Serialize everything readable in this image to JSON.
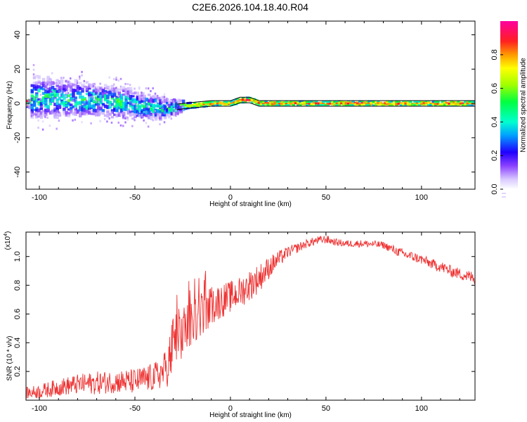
{
  "title": "C2E6.2026.104.18.40.R04",
  "chart_data": [
    {
      "type": "heatmap",
      "xlabel": "Height of straight line (km)",
      "ylabel": "Frequency (Hz)",
      "xlim": [
        -107,
        128
      ],
      "ylim": [
        -50,
        48
      ],
      "xticks": [
        -100,
        -50,
        0,
        50,
        100
      ],
      "yticks": [
        -40,
        -20,
        0,
        20,
        40
      ],
      "colorbar": {
        "label": "Normalized spectral amplitude",
        "range": [
          0.0,
          1.0
        ],
        "ticks": [
          0.0,
          0.2,
          0.4,
          0.6,
          0.8
        ],
        "tick_labels": [
          "0.0",
          "0.2",
          "0.4",
          "0.6",
          "0.8"
        ]
      },
      "ridge": [
        {
          "x": -105,
          "center": 3,
          "spread": 9,
          "amp": 0.45
        },
        {
          "x": -95,
          "center": 3,
          "spread": 8,
          "amp": 0.5
        },
        {
          "x": -85,
          "center": 2,
          "spread": 7,
          "amp": 0.5
        },
        {
          "x": -75,
          "center": 2,
          "spread": 7,
          "amp": 0.5
        },
        {
          "x": -65,
          "center": 1,
          "spread": 6,
          "amp": 0.5
        },
        {
          "x": -55,
          "center": 0,
          "spread": 6,
          "amp": 0.5
        },
        {
          "x": -45,
          "center": -2,
          "spread": 5,
          "amp": 0.48
        },
        {
          "x": -35,
          "center": -3,
          "spread": 4,
          "amp": 0.5
        },
        {
          "x": -28,
          "center": -2,
          "spread": 2,
          "amp": 0.6
        },
        {
          "x": -20,
          "center": -1,
          "spread": 1.5,
          "amp": 0.8
        },
        {
          "x": -10,
          "center": 0,
          "spread": 1.3,
          "amp": 0.9
        },
        {
          "x": 0,
          "center": 0,
          "spread": 1.2,
          "amp": 0.9
        },
        {
          "x": 5,
          "center": 2,
          "spread": 1.5,
          "amp": 0.95
        },
        {
          "x": 10,
          "center": 2,
          "spread": 1.5,
          "amp": 0.95
        },
        {
          "x": 15,
          "center": 0,
          "spread": 1.2,
          "amp": 0.95
        },
        {
          "x": 40,
          "center": 0,
          "spread": 1.2,
          "amp": 0.92
        },
        {
          "x": 70,
          "center": 0,
          "spread": 1.2,
          "amp": 0.95
        },
        {
          "x": 100,
          "center": 0,
          "spread": 1.2,
          "amp": 0.92
        },
        {
          "x": 128,
          "center": 0,
          "spread": 1.2,
          "amp": 0.93
        }
      ]
    },
    {
      "type": "line",
      "xlabel": "Height of straight line (km)",
      "ylabel": "SNR (10 * v/v)",
      "multiplier_label": "(x10",
      "multiplier_exp": "4",
      "multiplier_close": ")",
      "xlim": [
        -107,
        128
      ],
      "ylim": [
        0.0,
        1.17
      ],
      "xticks": [
        -100,
        -50,
        0,
        50,
        100
      ],
      "yticks": [
        0.2,
        0.4,
        0.6,
        0.8,
        1.0
      ],
      "ytick_labels": [
        "0.2",
        "0.4",
        "0.6",
        "0.8",
        "1.0"
      ],
      "color": "#ee3333",
      "series": [
        {
          "name": "SNR",
          "x": [
            -107,
            -100,
            -90,
            -80,
            -70,
            -60,
            -50,
            -40,
            -35,
            -32,
            -30,
            -25,
            -20,
            -15,
            -10,
            -5,
            0,
            5,
            10,
            15,
            20,
            25,
            30,
            35,
            40,
            45,
            50,
            55,
            60,
            70,
            80,
            85,
            90,
            95,
            100,
            105,
            110,
            115,
            120,
            125,
            128
          ],
          "y": [
            0.05,
            0.06,
            0.09,
            0.11,
            0.12,
            0.13,
            0.13,
            0.16,
            0.2,
            0.28,
            0.38,
            0.47,
            0.55,
            0.6,
            0.66,
            0.69,
            0.72,
            0.75,
            0.8,
            0.85,
            0.92,
            0.98,
            1.03,
            1.06,
            1.09,
            1.11,
            1.12,
            1.1,
            1.09,
            1.09,
            1.08,
            1.05,
            1.02,
            1.0,
            0.98,
            0.95,
            0.93,
            0.9,
            0.88,
            0.86,
            0.85
          ],
          "noise": [
            0.04,
            0.05,
            0.06,
            0.07,
            0.08,
            0.08,
            0.09,
            0.1,
            0.12,
            0.18,
            0.22,
            0.2,
            0.16,
            0.15,
            0.14,
            0.12,
            0.11,
            0.11,
            0.11,
            0.1,
            0.08,
            0.06,
            0.04,
            0.035,
            0.03,
            0.03,
            0.03,
            0.025,
            0.025,
            0.025,
            0.025,
            0.03,
            0.035,
            0.035,
            0.035,
            0.035,
            0.04,
            0.04,
            0.04,
            0.045,
            0.045
          ]
        }
      ]
    }
  ]
}
